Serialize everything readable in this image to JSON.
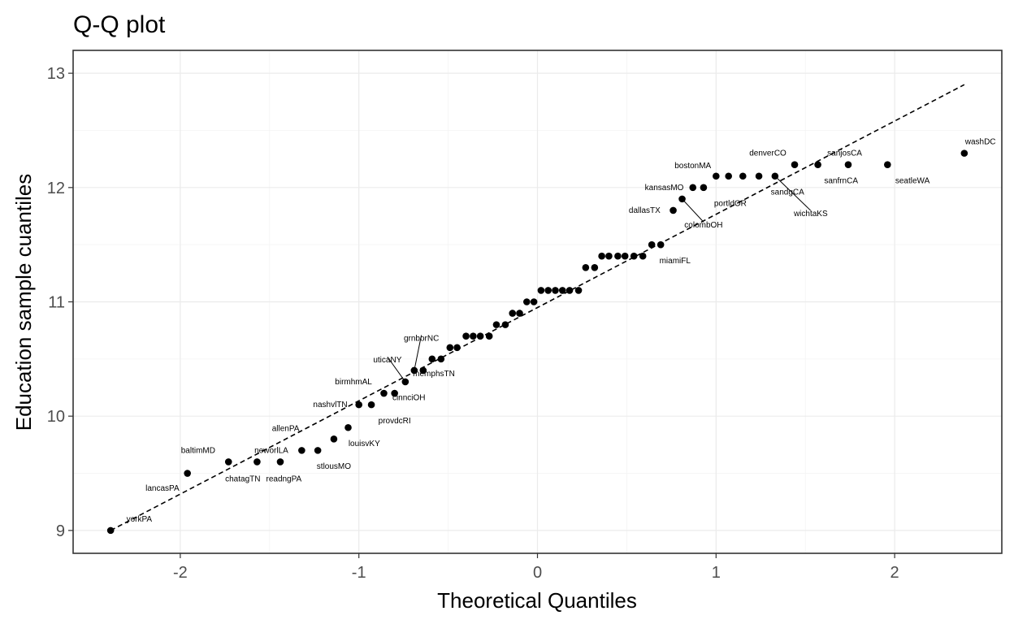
{
  "chart_data": {
    "type": "scatter",
    "title": "Q-Q plot",
    "xlabel": "Theoretical Quantiles",
    "ylabel": "Education sample cuantiles",
    "xlim": [
      -2.6,
      2.6
    ],
    "ylim": [
      8.8,
      13.2
    ],
    "x_ticks": [
      -2,
      -1,
      0,
      1,
      2
    ],
    "x_tick_labels": [
      "-2",
      "-1",
      "0",
      "1",
      "2"
    ],
    "y_ticks": [
      9,
      10,
      11,
      12,
      13
    ],
    "y_tick_labels": [
      "9",
      "10",
      "11",
      "12",
      "13"
    ],
    "grid": true,
    "reference_line": {
      "x": [
        -2.39,
        2.39
      ],
      "y": [
        9.0,
        12.9
      ],
      "style": "dashed"
    },
    "points": [
      {
        "x": -2.39,
        "y": 9.0
      },
      {
        "x": -1.96,
        "y": 9.5
      },
      {
        "x": -1.73,
        "y": 9.6
      },
      {
        "x": -1.57,
        "y": 9.6
      },
      {
        "x": -1.44,
        "y": 9.6
      },
      {
        "x": -1.32,
        "y": 9.7
      },
      {
        "x": -1.23,
        "y": 9.7
      },
      {
        "x": -1.14,
        "y": 9.8
      },
      {
        "x": -1.06,
        "y": 9.9
      },
      {
        "x": -1.0,
        "y": 10.1
      },
      {
        "x": -0.93,
        "y": 10.1
      },
      {
        "x": -0.86,
        "y": 10.2
      },
      {
        "x": -0.8,
        "y": 10.2
      },
      {
        "x": -0.74,
        "y": 10.3
      },
      {
        "x": -0.69,
        "y": 10.4
      },
      {
        "x": -0.64,
        "y": 10.4
      },
      {
        "x": -0.59,
        "y": 10.5
      },
      {
        "x": -0.54,
        "y": 10.5
      },
      {
        "x": -0.49,
        "y": 10.6
      },
      {
        "x": -0.45,
        "y": 10.6
      },
      {
        "x": -0.4,
        "y": 10.7
      },
      {
        "x": -0.36,
        "y": 10.7
      },
      {
        "x": -0.32,
        "y": 10.7
      },
      {
        "x": -0.27,
        "y": 10.7
      },
      {
        "x": -0.23,
        "y": 10.8
      },
      {
        "x": -0.18,
        "y": 10.8
      },
      {
        "x": -0.14,
        "y": 10.9
      },
      {
        "x": -0.1,
        "y": 10.9
      },
      {
        "x": -0.06,
        "y": 11.0
      },
      {
        "x": -0.02,
        "y": 11.0
      },
      {
        "x": 0.02,
        "y": 11.1
      },
      {
        "x": 0.06,
        "y": 11.1
      },
      {
        "x": 0.1,
        "y": 11.1
      },
      {
        "x": 0.14,
        "y": 11.1
      },
      {
        "x": 0.18,
        "y": 11.1
      },
      {
        "x": 0.23,
        "y": 11.1
      },
      {
        "x": 0.27,
        "y": 11.3
      },
      {
        "x": 0.32,
        "y": 11.3
      },
      {
        "x": 0.36,
        "y": 11.4
      },
      {
        "x": 0.4,
        "y": 11.4
      },
      {
        "x": 0.45,
        "y": 11.4
      },
      {
        "x": 0.49,
        "y": 11.4
      },
      {
        "x": 0.54,
        "y": 11.4
      },
      {
        "x": 0.59,
        "y": 11.4
      },
      {
        "x": 0.64,
        "y": 11.5
      },
      {
        "x": 0.69,
        "y": 11.5
      },
      {
        "x": 0.76,
        "y": 11.8
      },
      {
        "x": 0.81,
        "y": 11.9
      },
      {
        "x": 0.87,
        "y": 12.0
      },
      {
        "x": 0.93,
        "y": 12.0
      },
      {
        "x": 1.0,
        "y": 12.1
      },
      {
        "x": 1.07,
        "y": 12.1
      },
      {
        "x": 1.15,
        "y": 12.1
      },
      {
        "x": 1.24,
        "y": 12.1
      },
      {
        "x": 1.33,
        "y": 12.1
      },
      {
        "x": 1.44,
        "y": 12.2
      },
      {
        "x": 1.57,
        "y": 12.2
      },
      {
        "x": 1.74,
        "y": 12.2
      },
      {
        "x": 1.96,
        "y": 12.2
      },
      {
        "x": 2.39,
        "y": 12.3
      }
    ],
    "annotations": [
      {
        "text": "yorkPA",
        "x": -2.39,
        "y": 9.0,
        "lx": -2.23,
        "ly": 9.1
      },
      {
        "text": "lancasPA",
        "x": -1.96,
        "y": 9.5,
        "lx": -2.1,
        "ly": 9.37
      },
      {
        "text": "baltimMD",
        "x": -1.96,
        "y": 9.5,
        "lx": -1.9,
        "ly": 9.7
      },
      {
        "text": "chatagTN",
        "x": -1.73,
        "y": 9.6,
        "lx": -1.65,
        "ly": 9.45
      },
      {
        "text": "neworlLA",
        "x": -1.57,
        "y": 9.6,
        "lx": -1.49,
        "ly": 9.7
      },
      {
        "text": "readngPA",
        "x": -1.44,
        "y": 9.6,
        "lx": -1.42,
        "ly": 9.45
      },
      {
        "text": "stlousMO",
        "x": -1.23,
        "y": 9.7,
        "lx": -1.14,
        "ly": 9.56
      },
      {
        "text": "allenPA",
        "x": -1.32,
        "y": 9.7,
        "lx": -1.41,
        "ly": 9.89
      },
      {
        "text": "louisvKY",
        "x": -1.06,
        "y": 9.9,
        "lx": -0.97,
        "ly": 9.76
      },
      {
        "text": "nashvlTN",
        "x": -1.0,
        "y": 10.1,
        "lx": -1.16,
        "ly": 10.1
      },
      {
        "text": "provdcRI",
        "x": -0.93,
        "y": 10.1,
        "lx": -0.8,
        "ly": 9.96
      },
      {
        "text": "birmhmAL",
        "x": -0.86,
        "y": 10.2,
        "lx": -1.03,
        "ly": 10.3
      },
      {
        "text": "cinnciOH",
        "x": -0.8,
        "y": 10.2,
        "lx": -0.72,
        "ly": 10.16
      },
      {
        "text": "uticaNY",
        "x": -0.74,
        "y": 10.3,
        "lx": -0.84,
        "ly": 10.49,
        "leader": true
      },
      {
        "text": "grnborNC",
        "x": -0.69,
        "y": 10.4,
        "lx": -0.65,
        "ly": 10.68,
        "leader": true
      },
      {
        "text": "memphsTN",
        "x": -0.64,
        "y": 10.4,
        "lx": -0.58,
        "ly": 10.37
      },
      {
        "text": "dallasTX",
        "x": 0.76,
        "y": 11.8,
        "lx": 0.6,
        "ly": 11.8
      },
      {
        "text": "miamiFL",
        "x": 0.69,
        "y": 11.5,
        "lx": 0.77,
        "ly": 11.36
      },
      {
        "text": "kansasMO",
        "x": 0.87,
        "y": 12.0,
        "lx": 0.71,
        "ly": 12.0
      },
      {
        "text": "colombOH",
        "x": 0.81,
        "y": 11.9,
        "lx": 0.93,
        "ly": 11.67,
        "leader": true
      },
      {
        "text": "bostonMA",
        "x": 0.93,
        "y": 12.0,
        "lx": 0.87,
        "ly": 12.19
      },
      {
        "text": "portldOR",
        "x": 1.07,
        "y": 12.1,
        "lx": 1.08,
        "ly": 11.86
      },
      {
        "text": "denverCO",
        "x": 1.44,
        "y": 12.2,
        "lx": 1.29,
        "ly": 12.3
      },
      {
        "text": "sandgCA",
        "x": 1.33,
        "y": 12.1,
        "lx": 1.4,
        "ly": 11.96
      },
      {
        "text": "wichtaKS",
        "x": 1.33,
        "y": 12.1,
        "lx": 1.53,
        "ly": 11.77,
        "leader": true
      },
      {
        "text": "sanjosCA",
        "x": 1.74,
        "y": 12.2,
        "lx": 1.72,
        "ly": 12.3
      },
      {
        "text": "sanfrnCA",
        "x": 1.57,
        "y": 12.2,
        "lx": 1.7,
        "ly": 12.06
      },
      {
        "text": "seatleWA",
        "x": 1.96,
        "y": 12.2,
        "lx": 2.1,
        "ly": 12.06
      },
      {
        "text": "washDC",
        "x": 2.39,
        "y": 12.3,
        "lx": 2.48,
        "ly": 12.4
      }
    ]
  }
}
